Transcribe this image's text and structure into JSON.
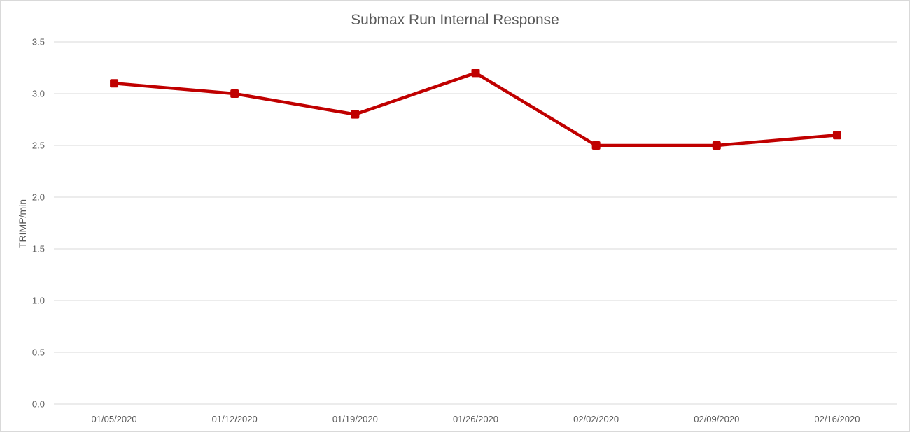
{
  "chart_data": {
    "type": "line",
    "title": "Submax Run Internal Response",
    "xlabel": "",
    "ylabel": "TRIMP/min",
    "categories": [
      "01/05/2020",
      "01/12/2020",
      "01/19/2020",
      "01/26/2020",
      "02/02/2020",
      "02/09/2020",
      "02/16/2020"
    ],
    "series": [
      {
        "values": [
          3.1,
          3.0,
          2.8,
          3.2,
          2.5,
          2.5,
          2.6
        ]
      }
    ],
    "ylim": [
      0,
      3.5
    ],
    "yticks": [
      "0.0",
      "0.5",
      "1.0",
      "1.5",
      "2.0",
      "2.5",
      "3.0",
      "3.5"
    ],
    "grid": true,
    "legend": "none",
    "colors": {
      "series": "#c00000",
      "grid": "#d9d9d9",
      "text": "#595959"
    }
  }
}
